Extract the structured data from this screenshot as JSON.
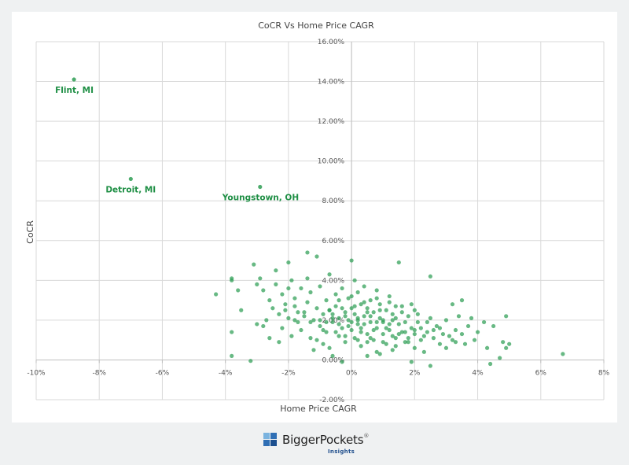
{
  "chart_data": {
    "type": "scatter",
    "title": "CoCR Vs Home Price CAGR",
    "xlabel": "Home Price CAGR",
    "ylabel": "CoCR",
    "xlim": [
      -10,
      8
    ],
    "ylim": [
      -2,
      16
    ],
    "x_ticks": [
      "-10%",
      "-8%",
      "-6%",
      "-4%",
      "-2%",
      "0%",
      "2%",
      "4%",
      "6%",
      "8%"
    ],
    "y_ticks": [
      "-2.00%",
      "0.00%",
      "2.00%",
      "4.00%",
      "6.00%",
      "8.00%",
      "10.00%",
      "12.00%",
      "14.00%",
      "16.00%"
    ],
    "grid": true,
    "point_color": "#2e9e54",
    "label_color": "#1f8f45",
    "labeled_points": [
      {
        "label": "Flint, MI",
        "x": -8.8,
        "y": 14.1
      },
      {
        "label": "Detroit, MI",
        "x": -7.0,
        "y": 9.1
      },
      {
        "label": "Youngstown, OH",
        "x": -2.9,
        "y": 8.7
      }
    ],
    "points": [
      [
        -4.3,
        3.3
      ],
      [
        -3.8,
        4.1
      ],
      [
        -3.8,
        4.0
      ],
      [
        -3.8,
        1.4
      ],
      [
        -3.8,
        0.2
      ],
      [
        -3.6,
        3.5
      ],
      [
        -3.5,
        2.5
      ],
      [
        -3.2,
        -0.05
      ],
      [
        -3.1,
        4.8
      ],
      [
        -3.0,
        1.8
      ],
      [
        -3.0,
        3.8
      ],
      [
        -2.9,
        4.1
      ],
      [
        -2.8,
        1.7
      ],
      [
        -2.8,
        3.5
      ],
      [
        -2.7,
        2.0
      ],
      [
        -2.6,
        1.1
      ],
      [
        -2.6,
        3.0
      ],
      [
        -2.5,
        2.6
      ],
      [
        -2.4,
        4.5
      ],
      [
        -2.4,
        3.8
      ],
      [
        -2.3,
        2.3
      ],
      [
        -2.3,
        0.9
      ],
      [
        -2.2,
        3.3
      ],
      [
        -2.2,
        1.6
      ],
      [
        -2.1,
        2.8
      ],
      [
        -2.0,
        4.9
      ],
      [
        -2.0,
        3.6
      ],
      [
        -2.0,
        2.1
      ],
      [
        -1.9,
        1.2
      ],
      [
        -1.9,
        4.0
      ],
      [
        -1.8,
        2.7
      ],
      [
        -1.8,
        3.1
      ],
      [
        -1.7,
        1.9
      ],
      [
        -1.7,
        2.4
      ],
      [
        -1.6,
        3.6
      ],
      [
        -1.6,
        1.5
      ],
      [
        -1.5,
        2.2
      ],
      [
        -1.4,
        5.4
      ],
      [
        -1.4,
        4.1
      ],
      [
        -1.4,
        2.9
      ],
      [
        -1.3,
        1.1
      ],
      [
        -1.3,
        3.4
      ],
      [
        -1.2,
        2.0
      ],
      [
        -1.2,
        0.5
      ],
      [
        -1.1,
        5.2
      ],
      [
        -1.1,
        2.6
      ],
      [
        -1.0,
        1.7
      ],
      [
        -1.0,
        3.7
      ],
      [
        -0.9,
        2.3
      ],
      [
        -0.9,
        0.8
      ],
      [
        -0.8,
        3.0
      ],
      [
        -0.8,
        1.4
      ],
      [
        -0.7,
        2.5
      ],
      [
        -0.7,
        4.3
      ],
      [
        -0.6,
        1.9
      ],
      [
        -0.6,
        0.2
      ],
      [
        -0.5,
        3.3
      ],
      [
        -0.5,
        2.7
      ],
      [
        -0.4,
        1.2
      ],
      [
        -0.4,
        2.1
      ],
      [
        -0.3,
        3.6
      ],
      [
        -0.3,
        1.6
      ],
      [
        -0.2,
        2.4
      ],
      [
        -0.2,
        0.9
      ],
      [
        -0.1,
        2.0
      ],
      [
        -0.1,
        3.1
      ],
      [
        0.0,
        5.0
      ],
      [
        0.0,
        1.5
      ],
      [
        0.0,
        2.6
      ],
      [
        0.1,
        4.0
      ],
      [
        0.1,
        1.1
      ],
      [
        0.1,
        2.3
      ],
      [
        0.2,
        1.8
      ],
      [
        0.2,
        3.4
      ],
      [
        0.3,
        2.8
      ],
      [
        0.3,
        0.7
      ],
      [
        0.3,
        1.6
      ],
      [
        0.4,
        2.2
      ],
      [
        0.4,
        3.7
      ],
      [
        0.5,
        1.3
      ],
      [
        0.5,
        2.6
      ],
      [
        0.5,
        0.2
      ],
      [
        0.6,
        1.9
      ],
      [
        0.6,
        3.0
      ],
      [
        0.7,
        2.4
      ],
      [
        0.7,
        1.0
      ],
      [
        0.8,
        1.6
      ],
      [
        0.8,
        3.5
      ],
      [
        0.8,
        0.4
      ],
      [
        0.9,
        2.1
      ],
      [
        0.9,
        2.8
      ],
      [
        1.0,
        1.3
      ],
      [
        1.0,
        1.9
      ],
      [
        1.1,
        0.8
      ],
      [
        1.1,
        2.5
      ],
      [
        1.2,
        1.5
      ],
      [
        1.2,
        3.2
      ],
      [
        1.3,
        2.0
      ],
      [
        1.3,
        0.5
      ],
      [
        1.4,
        1.1
      ],
      [
        1.4,
        2.7
      ],
      [
        1.5,
        1.8
      ],
      [
        1.5,
        4.9
      ],
      [
        1.6,
        1.4
      ],
      [
        1.6,
        2.4
      ],
      [
        1.7,
        0.9
      ],
      [
        1.7,
        1.9
      ],
      [
        1.8,
        2.2
      ],
      [
        1.8,
        1.1
      ],
      [
        1.9,
        1.6
      ],
      [
        1.9,
        2.8
      ],
      [
        2.0,
        1.3
      ],
      [
        2.0,
        0.6
      ],
      [
        2.1,
        1.9
      ],
      [
        2.1,
        2.3
      ],
      [
        2.2,
        1.0
      ],
      [
        2.2,
        1.6
      ],
      [
        2.3,
        0.4
      ],
      [
        2.4,
        1.4
      ],
      [
        2.5,
        2.1
      ],
      [
        2.5,
        4.2
      ],
      [
        2.6,
        1.1
      ],
      [
        2.7,
        1.7
      ],
      [
        2.8,
        0.8
      ],
      [
        2.9,
        1.3
      ],
      [
        3.0,
        2.0
      ],
      [
        3.0,
        0.6
      ],
      [
        3.1,
        1.2
      ],
      [
        3.2,
        2.8
      ],
      [
        3.3,
        1.5
      ],
      [
        3.3,
        0.9
      ],
      [
        3.4,
        2.2
      ],
      [
        3.5,
        1.3
      ],
      [
        3.5,
        3.0
      ],
      [
        3.6,
        0.8
      ],
      [
        3.7,
        1.7
      ],
      [
        3.8,
        2.1
      ],
      [
        3.9,
        1.0
      ],
      [
        4.0,
        1.4
      ],
      [
        4.2,
        1.9
      ],
      [
        4.3,
        0.6
      ],
      [
        4.4,
        -0.2
      ],
      [
        4.5,
        1.7
      ],
      [
        4.7,
        0.1
      ],
      [
        4.8,
        0.9
      ],
      [
        4.9,
        2.2
      ],
      [
        4.9,
        0.6
      ],
      [
        5.0,
        0.8
      ],
      [
        6.7,
        0.3
      ],
      [
        -1.0,
        2.0
      ],
      [
        -0.8,
        1.9
      ],
      [
        -0.6,
        2.1
      ],
      [
        -0.4,
        1.8
      ],
      [
        -0.2,
        2.2
      ],
      [
        0.0,
        1.9
      ],
      [
        0.2,
        2.1
      ],
      [
        0.4,
        1.8
      ],
      [
        0.6,
        2.2
      ],
      [
        0.8,
        1.9
      ],
      [
        1.0,
        2.0
      ],
      [
        1.2,
        1.8
      ],
      [
        1.4,
        2.1
      ],
      [
        -0.9,
        1.5
      ],
      [
        -0.5,
        1.4
      ],
      [
        -0.1,
        1.7
      ],
      [
        0.3,
        1.4
      ],
      [
        0.7,
        1.5
      ],
      [
        1.1,
        1.6
      ],
      [
        1.5,
        1.3
      ],
      [
        -0.7,
        2.5
      ],
      [
        -0.3,
        2.6
      ],
      [
        0.1,
        2.7
      ],
      [
        0.5,
        2.4
      ],
      [
        0.9,
        2.5
      ],
      [
        1.3,
        2.3
      ],
      [
        1.7,
        1.4
      ],
      [
        2.0,
        1.5
      ],
      [
        2.3,
        1.2
      ],
      [
        2.6,
        1.5
      ],
      [
        -1.3,
        1.9
      ],
      [
        -1.5,
        2.4
      ],
      [
        -1.8,
        2.0
      ],
      [
        -2.1,
        2.5
      ],
      [
        -0.2,
        1.2
      ],
      [
        0.2,
        1.0
      ],
      [
        0.6,
        1.1
      ],
      [
        1.0,
        0.9
      ],
      [
        1.4,
        0.7
      ],
      [
        1.8,
        0.9
      ],
      [
        -0.4,
        3.0
      ],
      [
        0.0,
        3.2
      ],
      [
        0.4,
        2.9
      ],
      [
        0.8,
        3.1
      ],
      [
        1.2,
        2.9
      ],
      [
        1.6,
        2.7
      ],
      [
        2.0,
        2.5
      ],
      [
        2.4,
        1.9
      ],
      [
        2.8,
        1.6
      ],
      [
        3.2,
        1.0
      ],
      [
        -1.1,
        1.0
      ],
      [
        -0.7,
        0.6
      ],
      [
        0.9,
        0.3
      ],
      [
        1.9,
        -0.1
      ],
      [
        2.5,
        -0.3
      ],
      [
        -0.3,
        -0.1
      ],
      [
        0.5,
        0.9
      ],
      [
        1.3,
        1.2
      ],
      [
        0.2,
        2.0
      ],
      [
        -0.6,
        2.3
      ]
    ]
  },
  "brand": {
    "name": "BiggerPockets",
    "registered": "®",
    "sub": "Insights"
  }
}
